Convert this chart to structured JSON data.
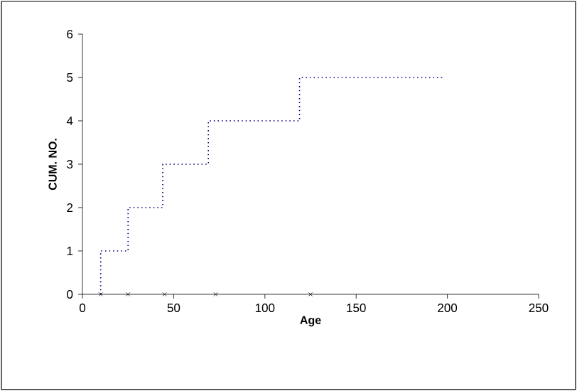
{
  "chart_data": {
    "type": "step",
    "xlabel": "Age",
    "ylabel": "CUM. NO.",
    "xlim": [
      0,
      250
    ],
    "xticks": [
      0,
      50,
      100,
      150,
      200,
      250
    ],
    "ylim": [
      0,
      6
    ],
    "yticks": [
      0,
      1,
      2,
      3,
      4,
      5,
      6
    ],
    "grid": false,
    "series": [
      {
        "color": "#000080",
        "line_style": "dotted",
        "marker": "none",
        "x": [
          10,
          10,
          25,
          44,
          69,
          119,
          198
        ],
        "values": [
          0,
          1,
          2,
          3,
          4,
          5,
          5
        ]
      },
      {
        "type": "scatter",
        "color": "#000000",
        "marker": "cross",
        "x": [
          10,
          25,
          45,
          73,
          125
        ],
        "values": [
          0,
          0,
          0,
          0,
          0
        ]
      }
    ]
  }
}
